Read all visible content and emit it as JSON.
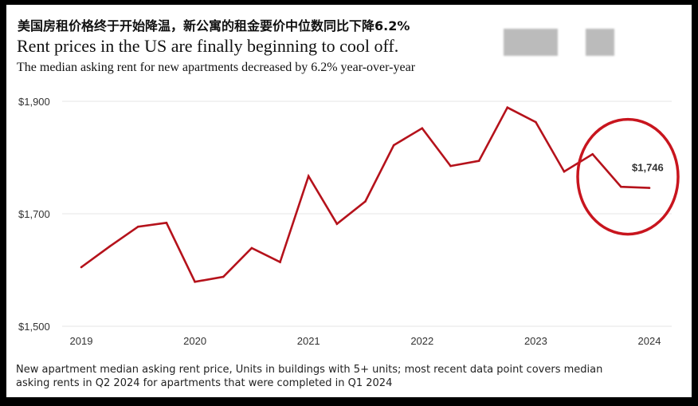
{
  "headline_cn": "美国房租价格终于开始降温，新公寓的租金要价中位数同比下降6.2%",
  "headline_en": "Rent prices in the US are finally beginning to cool off.",
  "subhead": "The median asking rent for new apartments decreased by 6.2% year-over-year",
  "footnote": "New apartment median asking rent price, Units in buildings with 5+ units; most recent data point covers median asking rents in Q2 2024 for apartments that were completed in Q1 2024",
  "colors": {
    "line": "#b5121b",
    "circle": "#c8151e",
    "grid": "#e6e6e6",
    "axis": "#333333"
  },
  "chart_data": {
    "type": "line",
    "x": [
      2019.0,
      2019.25,
      2019.5,
      2019.75,
      2020.0,
      2020.25,
      2020.5,
      2020.75,
      2021.0,
      2021.25,
      2021.5,
      2021.75,
      2022.0,
      2022.25,
      2022.5,
      2022.75,
      2023.0,
      2023.25,
      2023.5,
      2023.75,
      2024.0
    ],
    "y": [
      1605,
      1642,
      1677,
      1684,
      1579,
      1588,
      1639,
      1614,
      1767,
      1682,
      1722,
      1822,
      1852,
      1785,
      1794,
      1889,
      1863,
      1775,
      1806,
      1748,
      1746
    ],
    "xlim": [
      2019,
      2024
    ],
    "ylim": [
      1500,
      1900
    ],
    "xticks": [
      "2019",
      "2020",
      "2021",
      "2022",
      "2023",
      "2024"
    ],
    "yticks": [
      1500,
      1700,
      1900
    ],
    "ytick_labels": [
      "$1,500",
      "$1,700",
      "$1,900"
    ],
    "annotation": {
      "label": "$1,746",
      "x": 2024.0,
      "y": 1746
    },
    "grid": true
  }
}
